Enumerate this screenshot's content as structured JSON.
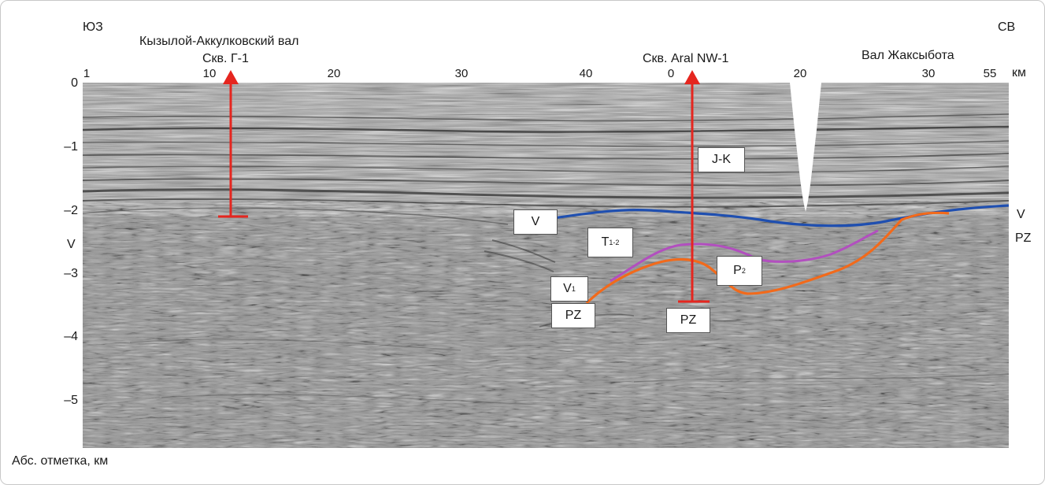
{
  "header": {
    "dir_left": "ЮЗ",
    "dir_right": "СВ",
    "structure_left": "Кызылой-Аккулковский вал",
    "well_left": "Скв. Г-1",
    "well_right": "Скв. Aral NW-1",
    "structure_right": "Вал Жаксыбота",
    "distance_unit": "км"
  },
  "top_ticks": [
    "1",
    "10",
    "20",
    "30",
    "40",
    "0",
    "20",
    "30",
    "55"
  ],
  "depth_ticks": [
    "0",
    "–1",
    "–2",
    "–3",
    "–4",
    "–5"
  ],
  "depth_axis_label": "Абс. отметка, км",
  "edge_labels": {
    "left_v": "V",
    "right_v": "V",
    "right_pz": "PZ"
  },
  "horizon_labels": {
    "jk": "J-K",
    "v": "V",
    "t_main": "T",
    "t_sub": "1-2",
    "p_main": "P",
    "p_sub": "2",
    "v1_main": "V",
    "v1_sup": "1",
    "pz_left": "PZ",
    "pz_right": "PZ"
  },
  "colors": {
    "well": "#e5261f",
    "horizon_v": "#1f4fb0",
    "horizon_t": "#b24fbf",
    "horizon_pz": "#f26a1b",
    "seismic_bg": "#9c9c9c"
  }
}
